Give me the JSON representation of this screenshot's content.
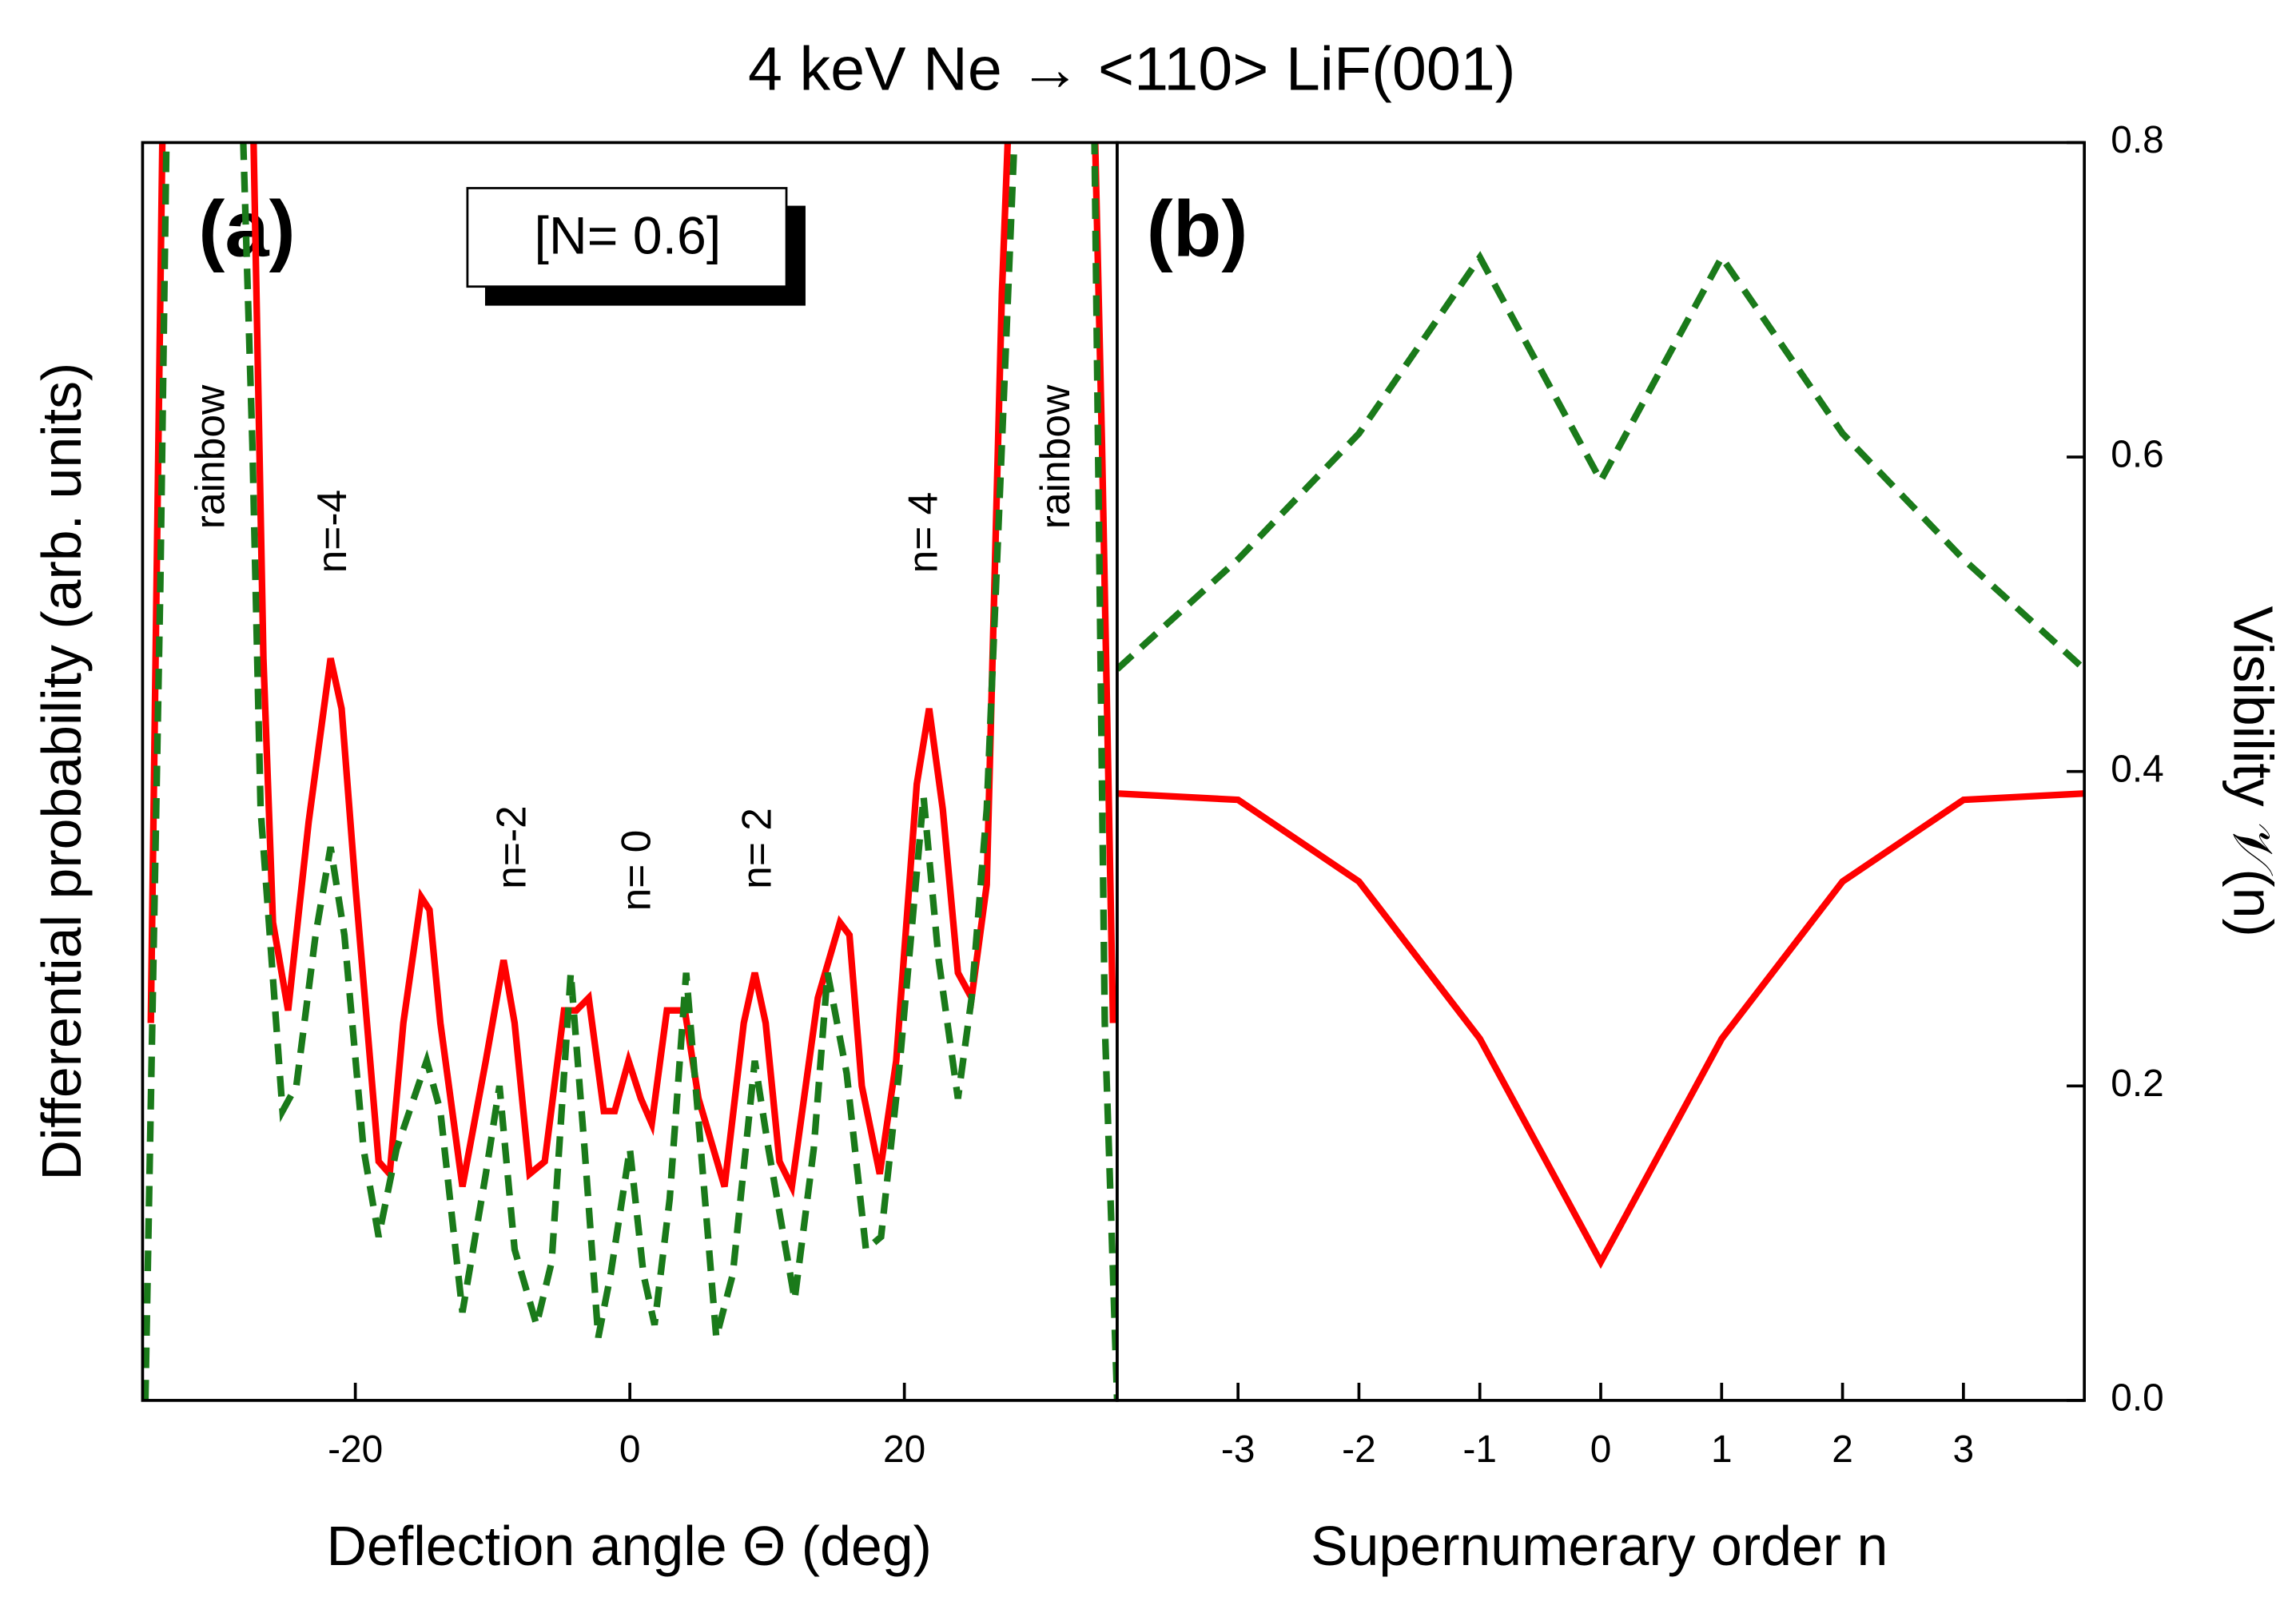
{
  "chart_data": [
    {
      "type": "line",
      "title": "4 keV Ne → <110> LiF(001)",
      "panel_label": "(a)",
      "box_text": "[N= 0.6]",
      "xlabel": "Deflection angle Θ (deg)",
      "ylabel": "Differential probability (arb. units)",
      "annotations": [
        "rainbow",
        "n=-4",
        "n=-2",
        "n= 0",
        "n= 2",
        "n= 4",
        "rainbow"
      ],
      "xlim": [
        -35.5,
        35.5
      ],
      "xticks": [
        -20,
        0,
        20
      ],
      "ylim": [
        0,
        1
      ],
      "series": [
        {
          "color": "#ff0000",
          "style": "solid",
          "x": [
            -34.9,
            -34.0,
            -27.5,
            -26.7,
            -26.0,
            -24.9,
            -23.4,
            -21.8,
            -21.0,
            -20.0,
            -18.3,
            -17.5,
            -16.5,
            -15.2,
            -14.6,
            -13.8,
            -12.2,
            -10.5,
            -9.2,
            -8.4,
            -7.3,
            -6.2,
            -4.8,
            -3.9,
            -3.0,
            -1.9,
            -1.1,
            -0.1,
            0.8,
            1.6,
            2.7,
            4.0,
            5.0,
            6.9,
            8.3,
            9.1,
            9.9,
            10.9,
            11.8,
            13.7,
            15.3,
            16.0,
            16.9,
            18.2,
            19.4,
            20.9,
            21.8,
            22.8,
            23.9,
            24.9,
            26.0,
            27.1,
            27.7,
            33.8,
            34.4,
            35.2
          ],
          "values": [
            0.3,
            1.05,
            1.05,
            0.59,
            0.38,
            0.31,
            0.46,
            0.59,
            0.55,
            0.41,
            0.19,
            0.18,
            0.3,
            0.4,
            0.39,
            0.3,
            0.17,
            0.27,
            0.35,
            0.3,
            0.18,
            0.19,
            0.31,
            0.31,
            0.32,
            0.23,
            0.23,
            0.27,
            0.24,
            0.22,
            0.31,
            0.31,
            0.24,
            0.17,
            0.3,
            0.34,
            0.3,
            0.19,
            0.17,
            0.32,
            0.38,
            0.37,
            0.25,
            0.18,
            0.27,
            0.49,
            0.55,
            0.47,
            0.34,
            0.32,
            0.41,
            0.88,
            1.05,
            1.05,
            0.76,
            0.3
          ]
        },
        {
          "color": "#1a7a1a",
          "style": "dashed",
          "x": [
            -35.3,
            -34.2,
            -33.7,
            -28.3,
            -27.5,
            -26.9,
            -26.1,
            -25.3,
            -24.3,
            -22.9,
            -21.8,
            -20.8,
            -19.4,
            -18.3,
            -17.0,
            -14.8,
            -13.8,
            -12.2,
            -10.5,
            -9.5,
            -8.4,
            -6.8,
            -5.7,
            -4.3,
            -3.3,
            -2.3,
            -1.4,
            0,
            1.0,
            1.8,
            2.9,
            4.1,
            5.1,
            6.3,
            7.5,
            9.1,
            10.1,
            12.0,
            13.4,
            14.4,
            15.8,
            17.2,
            18.3,
            19.6,
            21.4,
            22.5,
            23.9,
            24.9,
            26.0,
            27.1,
            28.2,
            33.8,
            34.6,
            35.5
          ],
          "values": [
            0,
            0.65,
            1.05,
            1.05,
            0.76,
            0.47,
            0.35,
            0.23,
            0.25,
            0.37,
            0.44,
            0.37,
            0.2,
            0.13,
            0.2,
            0.27,
            0.23,
            0.07,
            0.18,
            0.25,
            0.12,
            0.06,
            0.11,
            0.34,
            0.2,
            0.05,
            0.1,
            0.2,
            0.1,
            0.06,
            0.16,
            0.34,
            0.21,
            0.05,
            0.1,
            0.27,
            0.2,
            0.08,
            0.2,
            0.34,
            0.26,
            0.12,
            0.13,
            0.26,
            0.48,
            0.35,
            0.24,
            0.32,
            0.47,
            0.76,
            1.05,
            1.05,
            0.3,
            0
          ]
        }
      ]
    },
    {
      "type": "line",
      "panel_label": "(b)",
      "xlabel": "Supernumerary order n",
      "y2label": "Visibility 𝒱(n)",
      "xlim": [
        -4,
        4
      ],
      "xticks": [
        -3,
        -2,
        -1,
        0,
        1,
        2,
        3
      ],
      "y2lim": [
        0,
        0.8
      ],
      "y2ticks": [
        {
          "value": 0,
          "label": "0.0"
        },
        0.2,
        0.4,
        0.6,
        0.8
      ],
      "series": [
        {
          "color": "#ff0000",
          "style": "solid",
          "axis": "y2",
          "x": [
            -4,
            -3,
            -2,
            -1,
            0,
            1,
            2,
            3,
            4
          ],
          "values": [
            0.386,
            0.382,
            0.33,
            0.23,
            0.088,
            0.23,
            0.33,
            0.382,
            0.386
          ]
        },
        {
          "color": "#1a7a1a",
          "style": "dashed",
          "axis": "y2",
          "x": [
            -4,
            -3,
            -2,
            -1,
            0,
            1,
            2,
            3,
            4
          ],
          "values": [
            0.465,
            0.535,
            0.615,
            0.727,
            0.585,
            0.727,
            0.615,
            0.535,
            0.465
          ]
        }
      ]
    }
  ]
}
